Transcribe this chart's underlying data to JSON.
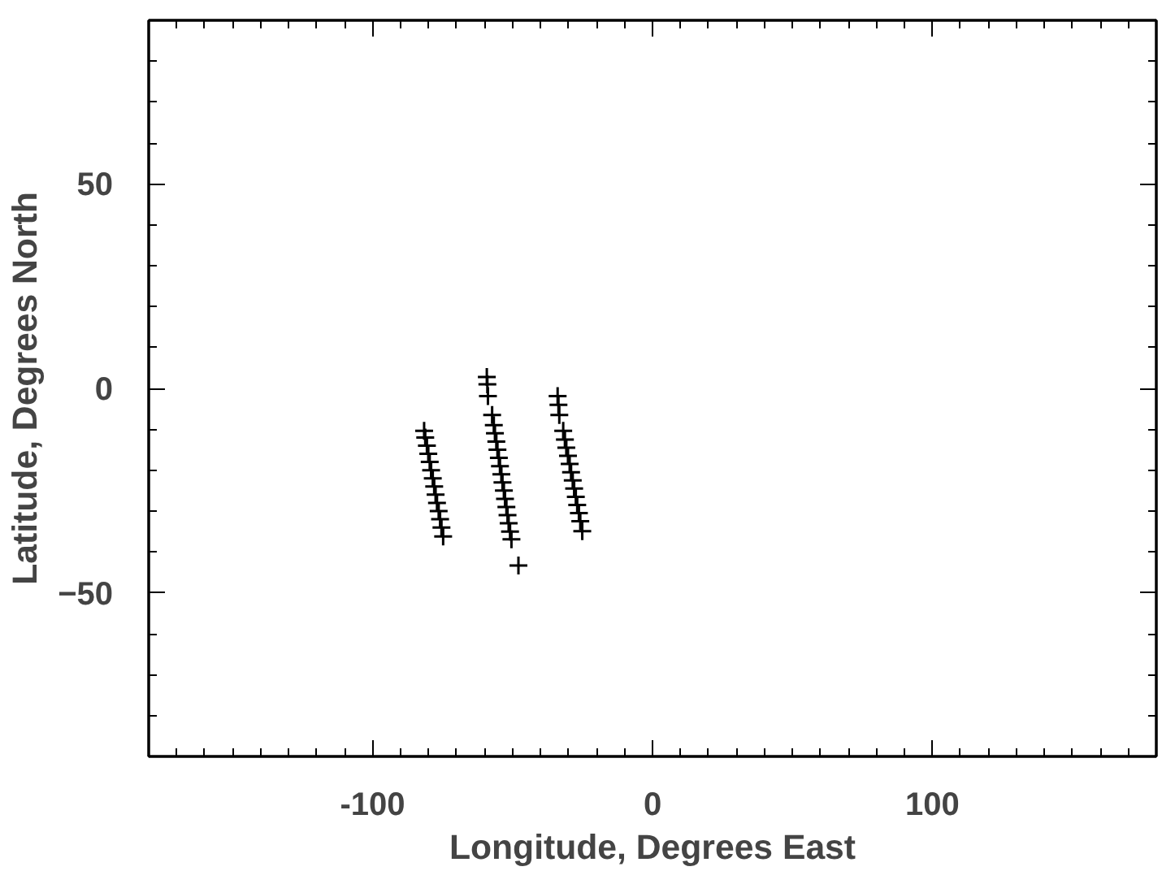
{
  "chart_data": {
    "type": "scatter",
    "xlabel": "Longitude, Degrees East",
    "ylabel": "Latitude, Degrees North",
    "marker": "cross",
    "color": "#000000",
    "x": [
      -81.6,
      -81.2,
      -80.6,
      -80.1,
      -79.6,
      -79.1,
      -78.5,
      -78.0,
      -77.5,
      -77.0,
      -76.4,
      -75.9,
      -75.4,
      -74.8,
      -59.2,
      -59.0,
      -58.8,
      -57.3,
      -56.7,
      -56.3,
      -55.8,
      -55.4,
      -54.9,
      -54.5,
      -54.0,
      -53.6,
      -53.1,
      -52.7,
      -52.2,
      -51.8,
      -51.4,
      -50.9,
      -50.4,
      -47.9,
      -33.9,
      -33.6,
      -33.3,
      -31.9,
      -31.3,
      -30.8,
      -30.2,
      -29.6,
      -29.1,
      -28.5,
      -28.0,
      -27.4,
      -26.9,
      -26.3,
      -25.8,
      -25.1
    ],
    "values": [
      -10.4,
      -12,
      -14,
      -16,
      -18,
      -20,
      -22,
      -24,
      -26,
      -28,
      -30,
      -32,
      -34,
      -36.2,
      2.8,
      1,
      -1.9,
      -6.5,
      -9,
      -11,
      -13,
      -15,
      -17,
      -19,
      -21,
      -23,
      -25,
      -27,
      -29,
      -31,
      -33,
      -35,
      -36.9,
      -43.3,
      -1.9,
      -4,
      -6.5,
      -10.4,
      -12.5,
      -14.5,
      -16.5,
      -18.5,
      -20.5,
      -22.5,
      -24.5,
      -26.5,
      -28.5,
      -30.5,
      -32.5,
      -34.9
    ],
    "xlim": [
      -180,
      180
    ],
    "ylim": [
      -90,
      90
    ],
    "xticks": [
      -100,
      0,
      100
    ],
    "yticks": [
      -50,
      0,
      50
    ]
  }
}
